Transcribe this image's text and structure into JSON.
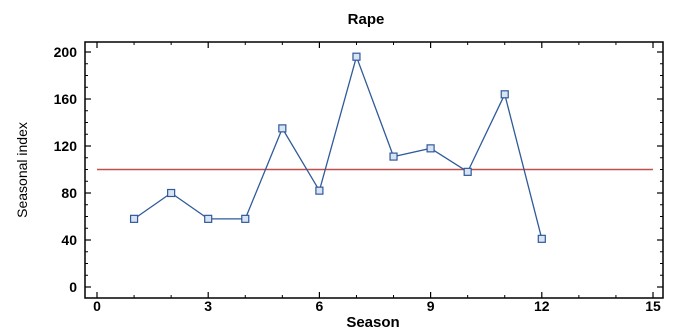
{
  "chart_data": {
    "type": "line",
    "title": "Rape",
    "xlabel": "Season",
    "ylabel": "Seasonal index",
    "xlim": [
      0,
      15
    ],
    "ylim": [
      0,
      200
    ],
    "x_ticks": [
      0,
      3,
      6,
      9,
      12,
      15
    ],
    "y_ticks": [
      0,
      40,
      80,
      120,
      160,
      200
    ],
    "grid": false,
    "series": [
      {
        "x": [
          1,
          2,
          3,
          4,
          5,
          6,
          7,
          8,
          9,
          10,
          11,
          12
        ],
        "values": [
          58,
          80,
          58,
          58,
          135,
          82,
          196,
          111,
          118,
          98,
          164,
          41
        ],
        "color": "#2f5a9a",
        "marker": "square"
      }
    ],
    "reference_line": {
      "y": 100,
      "color": "#c0504d"
    }
  }
}
